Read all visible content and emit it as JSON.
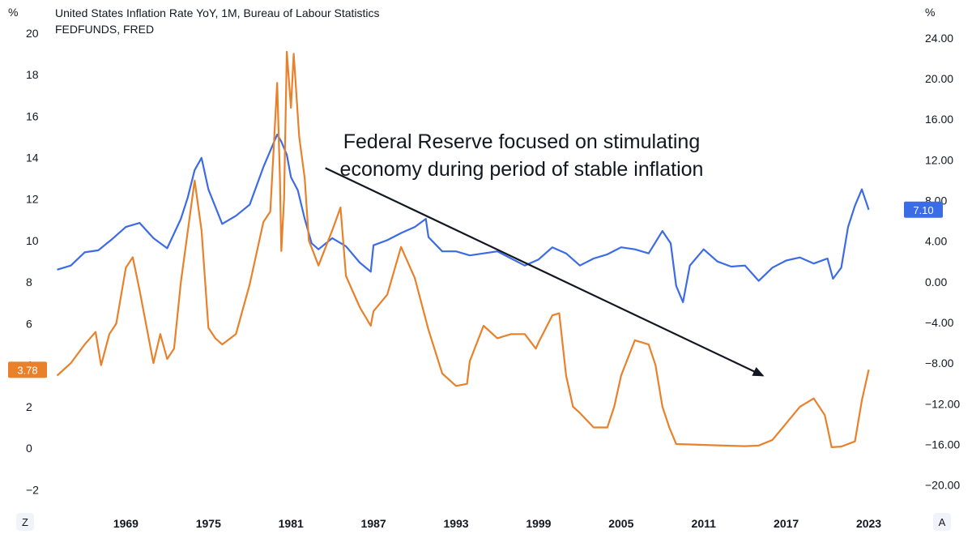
{
  "chart_data": {
    "type": "line",
    "title_lines": [
      "United States Inflation Rate YoY, 1M, Bureau of Labour Statistics",
      "FEDFUNDS, FRED"
    ],
    "left_axis": {
      "unit": "%",
      "range": [
        -3,
        20.5
      ],
      "ticks": [
        "20",
        "18",
        "16",
        "14",
        "12",
        "10",
        "8",
        "6",
        "4",
        "2",
        "0",
        "−2"
      ],
      "tick_values": [
        20,
        18,
        16,
        14,
        12,
        10,
        8,
        6,
        4,
        2,
        0,
        -2
      ]
    },
    "right_axis": {
      "unit": "%",
      "range": [
        -22.5,
        25.5
      ],
      "ticks": [
        "24.00",
        "20.00",
        "16.00",
        "12.00",
        "8.00",
        "4.00",
        "0.00",
        "−4.00",
        "−8.00",
        "−12.00",
        "−16.00",
        "−20.00"
      ],
      "tick_values": [
        24,
        20,
        16,
        12,
        8,
        4,
        0,
        -4,
        -8,
        -12,
        -16,
        -20
      ]
    },
    "x_axis": {
      "range": [
        1963.5,
        2024.5
      ],
      "ticks": [
        "1969",
        "1975",
        "1981",
        "1987",
        "1993",
        "1999",
        "2005",
        "2011",
        "2017",
        "2023"
      ],
      "tick_values": [
        1969,
        1975,
        1981,
        1987,
        1993,
        1999,
        2005,
        2011,
        2017,
        2023
      ]
    },
    "series": [
      {
        "name": "United States Inflation Rate YoY",
        "axis": "right",
        "color": "#3c6be6",
        "last_value_label": "7.10",
        "x": [
          1964,
          1965,
          1966,
          1967,
          1968,
          1969,
          1970,
          1971,
          1972,
          1973,
          1973.5,
          1974,
          1974.5,
          1975,
          1976,
          1977,
          1978,
          1979,
          1980,
          1980.3,
          1980.7,
          1981,
          1981.5,
          1982,
          1982.5,
          1983,
          1984,
          1985,
          1986,
          1986.8,
          1987,
          1988,
          1989,
          1990,
          1990.8,
          1991,
          1992,
          1993,
          1994,
          1995,
          1996,
          1997,
          1998,
          1999,
          2000,
          2001,
          2002,
          2003,
          2004,
          2005,
          2006,
          2007,
          2008,
          2008.6,
          2009,
          2009.5,
          2010,
          2011,
          2012,
          2013,
          2014,
          2015,
          2016,
          2017,
          2018,
          2019,
          2020,
          2020.4,
          2021,
          2021.5,
          2022,
          2022.5,
          2023
        ],
        "y": [
          1.2,
          1.6,
          2.9,
          3.1,
          4.2,
          5.4,
          5.8,
          4.3,
          3.3,
          6.2,
          8.3,
          11.0,
          12.2,
          9.1,
          5.7,
          6.5,
          7.6,
          11.3,
          14.5,
          13.8,
          12.5,
          10.3,
          9.0,
          6.2,
          3.8,
          3.2,
          4.3,
          3.5,
          1.9,
          1.0,
          3.6,
          4.1,
          4.8,
          5.4,
          6.2,
          4.4,
          3.0,
          3.0,
          2.6,
          2.8,
          3.0,
          2.3,
          1.6,
          2.2,
          3.4,
          2.8,
          1.6,
          2.3,
          2.7,
          3.4,
          3.2,
          2.8,
          5.0,
          3.8,
          -0.4,
          -2.0,
          1.6,
          3.2,
          2.0,
          1.5,
          1.6,
          0.1,
          1.4,
          2.1,
          2.4,
          1.8,
          2.3,
          0.3,
          1.4,
          5.4,
          7.5,
          9.1,
          7.1
        ]
      },
      {
        "name": "FEDFUNDS",
        "axis": "left",
        "color": "#e8812a",
        "last_value_label": "3.78",
        "x": [
          1964,
          1965,
          1966,
          1966.8,
          1967.2,
          1967.8,
          1968.3,
          1969,
          1969.5,
          1970,
          1971,
          1971.5,
          1972,
          1972.5,
          1973,
          1974,
          1974.5,
          1975,
          1975.5,
          1976,
          1977,
          1978,
          1979,
          1979.5,
          1980,
          1980.2,
          1980.3,
          1980.5,
          1980.7,
          1981,
          1981.2,
          1981.6,
          1982,
          1982.3,
          1982.6,
          1983,
          1984,
          1984.6,
          1985,
          1986,
          1986.8,
          1987,
          1988,
          1989,
          1990,
          1991,
          1992,
          1993,
          1993.8,
          1994,
          1995,
          1996,
          1997,
          1998,
          1998.8,
          1999,
          2000,
          2000.5,
          2001,
          2001.5,
          2002,
          2003,
          2004,
          2004.5,
          2005,
          2006,
          2007,
          2007.5,
          2008,
          2008.5,
          2009,
          2010,
          2012,
          2014,
          2015,
          2016,
          2017,
          2018,
          2019,
          2019.8,
          2020,
          2020.3,
          2021,
          2022,
          2022.5,
          2023
        ],
        "y": [
          3.5,
          4.1,
          5.0,
          5.6,
          4.0,
          5.5,
          6.0,
          8.7,
          9.2,
          7.6,
          4.1,
          5.5,
          4.3,
          4.8,
          8.0,
          12.9,
          10.5,
          5.8,
          5.3,
          5.0,
          5.5,
          7.9,
          10.9,
          11.4,
          17.6,
          13.0,
          9.5,
          12.0,
          19.1,
          16.4,
          19.0,
          15.0,
          13.0,
          10.0,
          9.5,
          8.8,
          10.5,
          11.6,
          8.3,
          6.8,
          5.9,
          6.6,
          7.4,
          9.7,
          8.2,
          5.7,
          3.6,
          3.0,
          3.1,
          4.2,
          5.9,
          5.3,
          5.5,
          5.5,
          4.8,
          5.1,
          6.4,
          6.5,
          3.5,
          2.0,
          1.7,
          1.0,
          1.0,
          2.0,
          3.5,
          5.2,
          5.0,
          4.0,
          2.0,
          1.0,
          0.2,
          0.18,
          0.14,
          0.1,
          0.13,
          0.4,
          1.2,
          2.0,
          2.4,
          1.6,
          1.0,
          0.05,
          0.08,
          0.33,
          2.3,
          3.78
        ]
      }
    ],
    "annotations": {
      "text_lines": [
        "Federal Reserve focused on stimulating",
        "economy during period of stable inflation"
      ],
      "arrow": {
        "from": [
          1983.5,
          13.5
        ],
        "to": [
          2015.3,
          3.5
        ],
        "axis": "left"
      }
    }
  },
  "ui": {
    "left_corner_button": "Z",
    "right_corner_button": "A"
  }
}
